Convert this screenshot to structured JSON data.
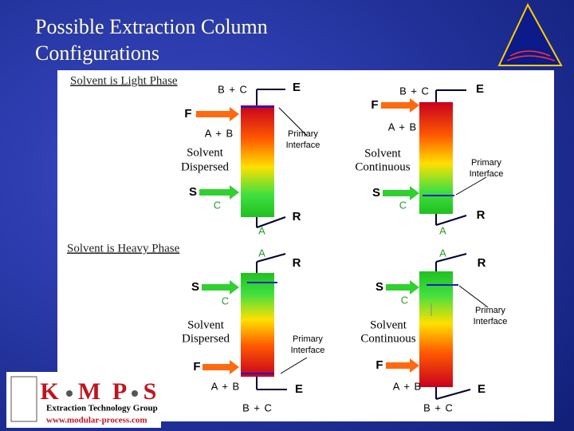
{
  "title": [
    "Possible Extraction Column",
    "Configurations"
  ],
  "sections": [
    "Solvent is Light Phase",
    "Solvent is Heavy Phase"
  ],
  "diagrams": [
    {
      "top_outlet": "E",
      "top_components": "B + C",
      "feed": "F",
      "feed_components": "A + B",
      "phase": [
        "Solvent",
        "Dispersed"
      ],
      "interface": [
        "Primary",
        "Interface"
      ],
      "solvent": "S",
      "solvent_component": "C",
      "bottom_component": "A",
      "bottom_outlet": "R"
    },
    {
      "top_outlet": "E",
      "top_components": "B + C",
      "feed": "F",
      "feed_components": "A + B",
      "phase": [
        "Solvent",
        "Continuous"
      ],
      "interface": [
        "Primary",
        "Interface"
      ],
      "solvent": "S",
      "solvent_component": "C",
      "bottom_component": "A",
      "bottom_outlet": "R"
    },
    {
      "top_component": "A",
      "top_outlet": "R",
      "solvent": "S",
      "solvent_component": "C",
      "phase": [
        "Solvent",
        "Dispersed"
      ],
      "interface": [
        "Primary",
        "Interface"
      ],
      "feed": "F",
      "feed_components": "A + B",
      "bottom_outlet": "E",
      "bottom_components": "B + C"
    },
    {
      "top_component": "A",
      "top_outlet": "R",
      "solvent": "S",
      "solvent_component": "C",
      "phase": [
        "Solvent",
        "Continuous"
      ],
      "interface": [
        "Primary",
        "Interface"
      ],
      "feed": "F",
      "feed_components": "A + B",
      "bottom_outlet": "E",
      "bottom_components": "B + C"
    }
  ],
  "logo": {
    "letters": [
      "K",
      "M",
      "P",
      "S"
    ],
    "subtitle": "Extraction Technology Group",
    "url": "www.modular-process.com"
  }
}
